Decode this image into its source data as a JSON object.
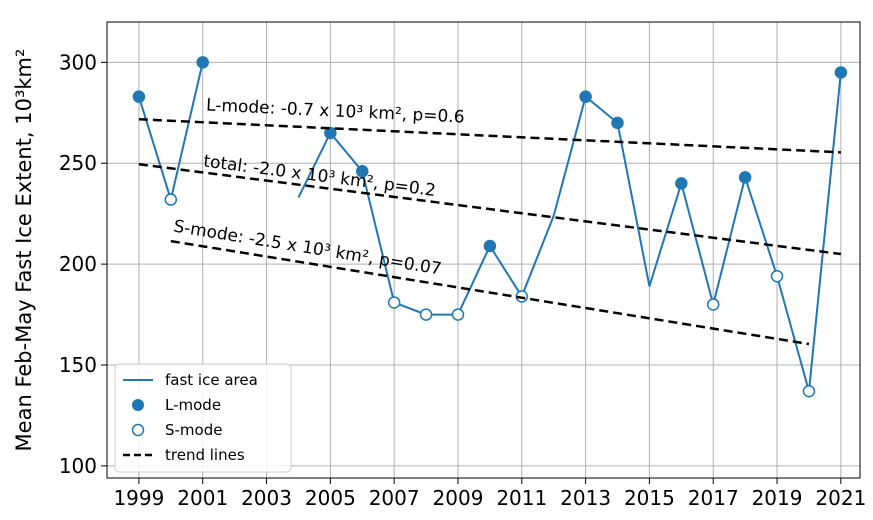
{
  "chart_data": {
    "type": "line",
    "ylabel": "Mean Feb-May Fast Ice Extent, 10³km²",
    "x": [
      1999,
      2000,
      2001,
      2002,
      2003,
      2004,
      2005,
      2006,
      2007,
      2008,
      2009,
      2010,
      2011,
      2012,
      2013,
      2014,
      2015,
      2016,
      2017,
      2018,
      2019,
      2020,
      2021
    ],
    "series": [
      {
        "name": "fast ice area",
        "color": "#1f77b4",
        "values": [
          283,
          232,
          300,
          null,
          null,
          233,
          265,
          246,
          181,
          175,
          175,
          209,
          184,
          224,
          283,
          270,
          189,
          240,
          180,
          243,
          194,
          137,
          295
        ]
      },
      {
        "name": "L-mode",
        "color": "#1f77b4",
        "marker": "filled",
        "values": [
          283,
          null,
          300,
          null,
          null,
          null,
          265,
          246,
          null,
          null,
          null,
          209,
          null,
          null,
          283,
          270,
          null,
          240,
          null,
          243,
          null,
          null,
          295
        ]
      },
      {
        "name": "S-mode",
        "color": "#1f77b4",
        "marker": "hollow",
        "values": [
          null,
          232,
          null,
          null,
          null,
          null,
          null,
          null,
          181,
          175,
          175,
          null,
          184,
          null,
          null,
          null,
          null,
          null,
          180,
          null,
          194,
          137,
          null
        ]
      }
    ],
    "trend": {
      "name": "trend lines",
      "color": "#000000",
      "lines": [
        {
          "label": "L-mode: -0.7 x 10³ km², p=0.6",
          "x": [
            1999,
            2021
          ],
          "values": [
            271.8,
            255.4
          ]
        },
        {
          "label": "total: -2.0 x 10³ km², p=0.2",
          "x": [
            1999,
            2021
          ],
          "values": [
            249.5,
            205
          ]
        },
        {
          "label": "S-mode: -2.5 x 10³ km², p=0.07",
          "x": [
            2000,
            2020
          ],
          "values": [
            211.4,
            160.4
          ]
        }
      ]
    },
    "xlim": [
      1998,
      2021.6
    ],
    "ylim": [
      94,
      320
    ],
    "xticks": [
      1999,
      2001,
      2003,
      2005,
      2007,
      2009,
      2011,
      2013,
      2015,
      2017,
      2019,
      2021
    ],
    "yticks": [
      100,
      150,
      200,
      250,
      300
    ],
    "grid": true,
    "legend": "lower left"
  }
}
